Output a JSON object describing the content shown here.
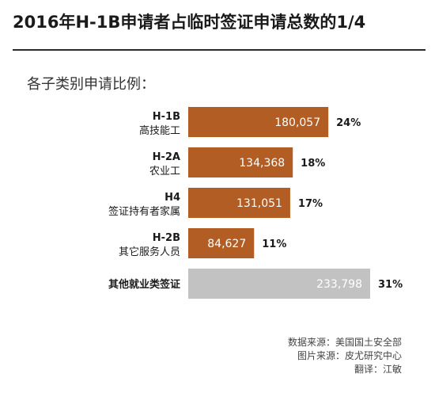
{
  "chart_data": {
    "type": "bar",
    "orientation": "horizontal",
    "title": "2016年H-1B申请者占临时签证申请总数的1/4",
    "subtitle": "各子类别申请比例：",
    "categories": [
      {
        "code": "H-1B",
        "name": "高技能工"
      },
      {
        "code": "H-2A",
        "name": "农业工"
      },
      {
        "code": "H4",
        "name": "签证持有者家属"
      },
      {
        "code": "H-2B",
        "name": "其它服务人员"
      },
      {
        "code": "",
        "name": "其他就业类签证"
      }
    ],
    "values": [
      180057,
      134368,
      131051,
      84627,
      233798
    ],
    "value_labels": [
      "180,057",
      "134,368",
      "131,051",
      "84,627",
      "233,798"
    ],
    "percent_labels": [
      "24%",
      "18%",
      "17%",
      "11%",
      "31%"
    ],
    "bar_colors": [
      "#b15d23",
      "#b15d23",
      "#b15d23",
      "#b15d23",
      "#c2c2c2"
    ],
    "xlabel": "",
    "ylabel": "",
    "grid": false,
    "legend": "none"
  },
  "credits": {
    "source": "数据来源：美国国土安全部",
    "image": "图片来源：皮尤研究中心",
    "translator": "翻译：江敏"
  }
}
